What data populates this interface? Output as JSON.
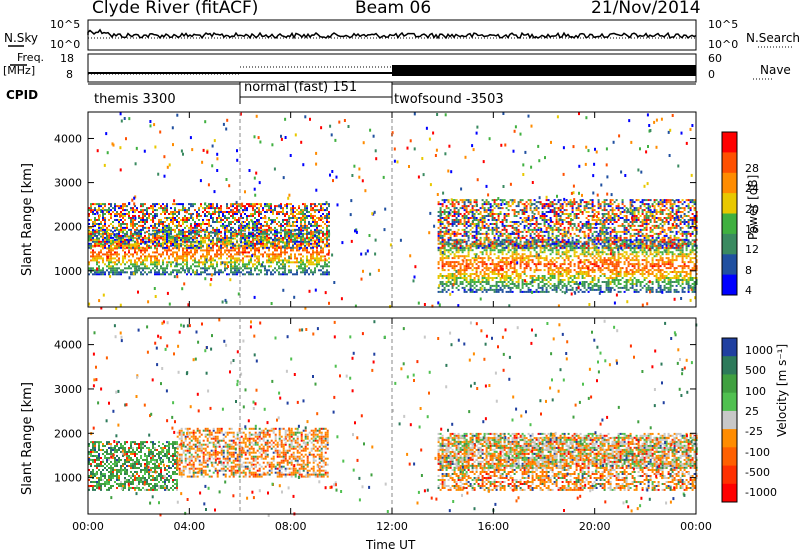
{
  "header": {
    "station": "Clyde River (fitACF)",
    "beam": "Beam 06",
    "date": "21/Nov/2014"
  },
  "top_panels": {
    "nsky_label": "N.Sky",
    "nsearch_label": "N.Search",
    "nsky_ticks": [
      "10^5",
      "10^0"
    ],
    "freq_label_line1": "Freq.",
    "freq_label_line2": "[MHz]",
    "freq_ticks": [
      "18",
      "8"
    ],
    "nave_label": "Nave",
    "nave_ticks": [
      "60",
      "0"
    ],
    "cpid_label": "CPID",
    "cpid_segments": [
      {
        "name": "themis 3300",
        "start_hour": 0,
        "end_hour": 6
      },
      {
        "name": "normal (fast) 151",
        "start_hour": 6,
        "end_hour": 12
      },
      {
        "name": "twofsound -3503",
        "start_hour": 12,
        "end_hour": 24
      }
    ]
  },
  "chart_data": [
    {
      "type": "heatmap",
      "title": "",
      "xlabel": "Time UT",
      "ylabel": "Slant Range [km]",
      "xlim": [
        0,
        24
      ],
      "ylim": [
        180,
        4600
      ],
      "x_tick_labels": [
        "00:00",
        "04:00",
        "08:00",
        "12:00",
        "16:00",
        "20:00",
        "00:00"
      ],
      "x_tick_hours": [
        0,
        4,
        8,
        12,
        16,
        20,
        24
      ],
      "y_tick_labels": [
        "1000",
        "2000",
        "3000",
        "4000"
      ],
      "y_tick_values": [
        1000,
        2000,
        3000,
        4000
      ],
      "colorbar": {
        "label": "Power [dB]",
        "tick_labels": [
          "4",
          "8",
          "12",
          "16",
          "20",
          "24",
          "28"
        ],
        "levels": [
          0,
          4,
          8,
          12,
          16,
          20,
          24,
          28,
          32
        ],
        "colors": [
          "#0000ff",
          "#2050a0",
          "#3a8a60",
          "#40b040",
          "#e8c800",
          "#ff8c00",
          "#ff5000",
          "#ff0000"
        ]
      },
      "scatter_regions": [
        {
          "hour_start": 0.0,
          "hour_end": 9.5,
          "range_start": 900,
          "range_end": 1900,
          "value": 28
        },
        {
          "hour_start": 0.0,
          "hour_end": 9.5,
          "range_start": 1500,
          "range_end": 2500,
          "value": 18
        },
        {
          "hour_start": 13.8,
          "hour_end": 24.0,
          "range_start": 500,
          "range_end": 1700,
          "value": 28
        },
        {
          "hour_start": 13.8,
          "hour_end": 24.0,
          "range_start": 1500,
          "range_end": 2600,
          "value": 16
        }
      ]
    },
    {
      "type": "heatmap",
      "title": "",
      "xlabel": "Time UT",
      "ylabel": "Slant Range [km]",
      "xlim": [
        0,
        24
      ],
      "ylim": [
        180,
        4600
      ],
      "x_tick_labels": [
        "00:00",
        "04:00",
        "08:00",
        "12:00",
        "16:00",
        "20:00",
        "00:00"
      ],
      "x_tick_hours": [
        0,
        4,
        8,
        12,
        16,
        20,
        24
      ],
      "y_tick_labels": [
        "1000",
        "2000",
        "3000",
        "4000"
      ],
      "y_tick_values": [
        1000,
        2000,
        3000,
        4000
      ],
      "colorbar": {
        "label": "Velocity [m s⁻¹]",
        "tick_labels": [
          "1000",
          "500",
          "100",
          "25",
          "-25",
          "-100",
          "-500",
          "-1000"
        ],
        "colors": [
          "#2040a0",
          "#2d7a5a",
          "#40a040",
          "#50c050",
          "#c8c8c8",
          "#ff8c00",
          "#ff6000",
          "#ff3000",
          "#ff0000"
        ]
      },
      "scatter_regions": [
        {
          "hour_start": 0.0,
          "hour_end": 3.5,
          "range_start": 700,
          "range_end": 1800,
          "value": "100"
        },
        {
          "hour_start": 3.5,
          "hour_end": 9.5,
          "range_start": 1000,
          "range_end": 2100,
          "value": "-100"
        },
        {
          "hour_start": 13.8,
          "hour_end": 24.0,
          "range_start": 700,
          "range_end": 1900,
          "value": "-100"
        },
        {
          "hour_start": 13.8,
          "hour_end": 24.0,
          "range_start": 1200,
          "range_end": 2000,
          "value": "25"
        }
      ]
    }
  ]
}
